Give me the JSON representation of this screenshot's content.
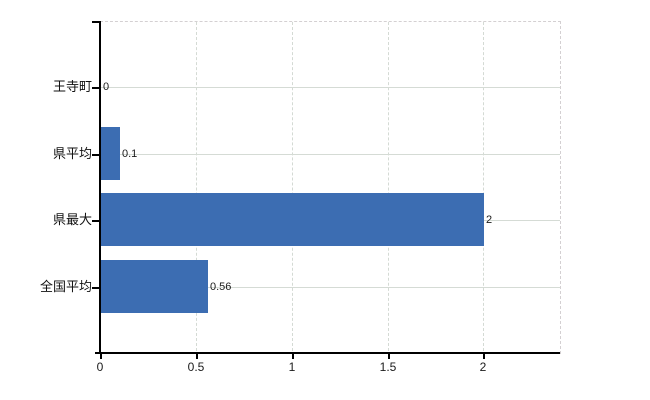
{
  "chart_data": {
    "type": "bar",
    "orientation": "horizontal",
    "title": "",
    "xlabel": "",
    "ylabel": "",
    "categories": [
      "王寺町",
      "県平均",
      "県最大",
      "全国平均"
    ],
    "values": [
      0,
      0.1,
      2,
      0.56
    ],
    "value_labels": [
      "0",
      "0.1",
      "2",
      "0.56"
    ],
    "x_ticks": [
      0,
      0.5,
      1,
      1.5,
      2
    ],
    "x_tick_labels": [
      "0",
      "0.5",
      "1",
      "1.5",
      "2"
    ],
    "xlim": [
      0,
      2.4
    ],
    "grid": true,
    "legend": "none",
    "bar_color": "#3c6db2",
    "gridline_color": "#d5dbd5",
    "axis_color": "#000000",
    "background_color": "#ffffff"
  }
}
